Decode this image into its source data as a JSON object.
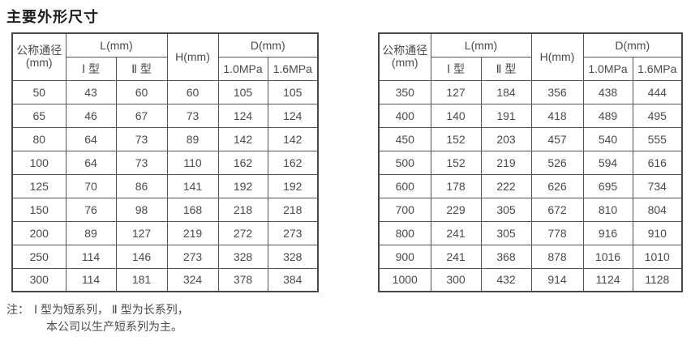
{
  "title": "主要外形尺寸",
  "header": {
    "col_dn": "公称通径",
    "col_dn_unit": "(mm)",
    "col_l": "L(mm)",
    "col_l_sub": [
      "Ⅰ 型",
      "Ⅱ 型"
    ],
    "col_h": "H(mm)",
    "col_d": "D(mm)",
    "col_d_sub": [
      "1.0MPa",
      "1.6MPa"
    ]
  },
  "tables": [
    {
      "rows": [
        [
          50,
          43,
          60,
          60,
          105,
          105
        ],
        [
          65,
          46,
          67,
          73,
          124,
          124
        ],
        [
          80,
          64,
          73,
          89,
          142,
          142
        ],
        [
          100,
          64,
          73,
          110,
          162,
          162
        ],
        [
          125,
          70,
          86,
          141,
          192,
          192
        ],
        [
          150,
          76,
          98,
          168,
          218,
          218
        ],
        [
          200,
          89,
          127,
          219,
          272,
          273
        ],
        [
          250,
          114,
          146,
          273,
          328,
          328
        ],
        [
          300,
          114,
          181,
          324,
          378,
          384
        ]
      ]
    },
    {
      "rows": [
        [
          350,
          127,
          184,
          356,
          438,
          444
        ],
        [
          400,
          140,
          191,
          418,
          489,
          495
        ],
        [
          450,
          152,
          203,
          457,
          540,
          555
        ],
        [
          500,
          152,
          219,
          526,
          594,
          616
        ],
        [
          600,
          178,
          222,
          626,
          695,
          734
        ],
        [
          700,
          229,
          305,
          672,
          810,
          804
        ],
        [
          800,
          241,
          305,
          778,
          916,
          910
        ],
        [
          900,
          241,
          368,
          878,
          1016,
          1010
        ],
        [
          1000,
          300,
          432,
          914,
          1124,
          1128
        ]
      ]
    }
  ],
  "note": {
    "prefix": "注：",
    "line1": "Ⅰ 型为短系列， Ⅱ 型为长系列，",
    "line2": "本公司以生产短系列为主。"
  },
  "colors": {
    "border": "#555555",
    "text": "#4a4a4a",
    "title": "#1e1e1e",
    "background": "#ffffff"
  }
}
